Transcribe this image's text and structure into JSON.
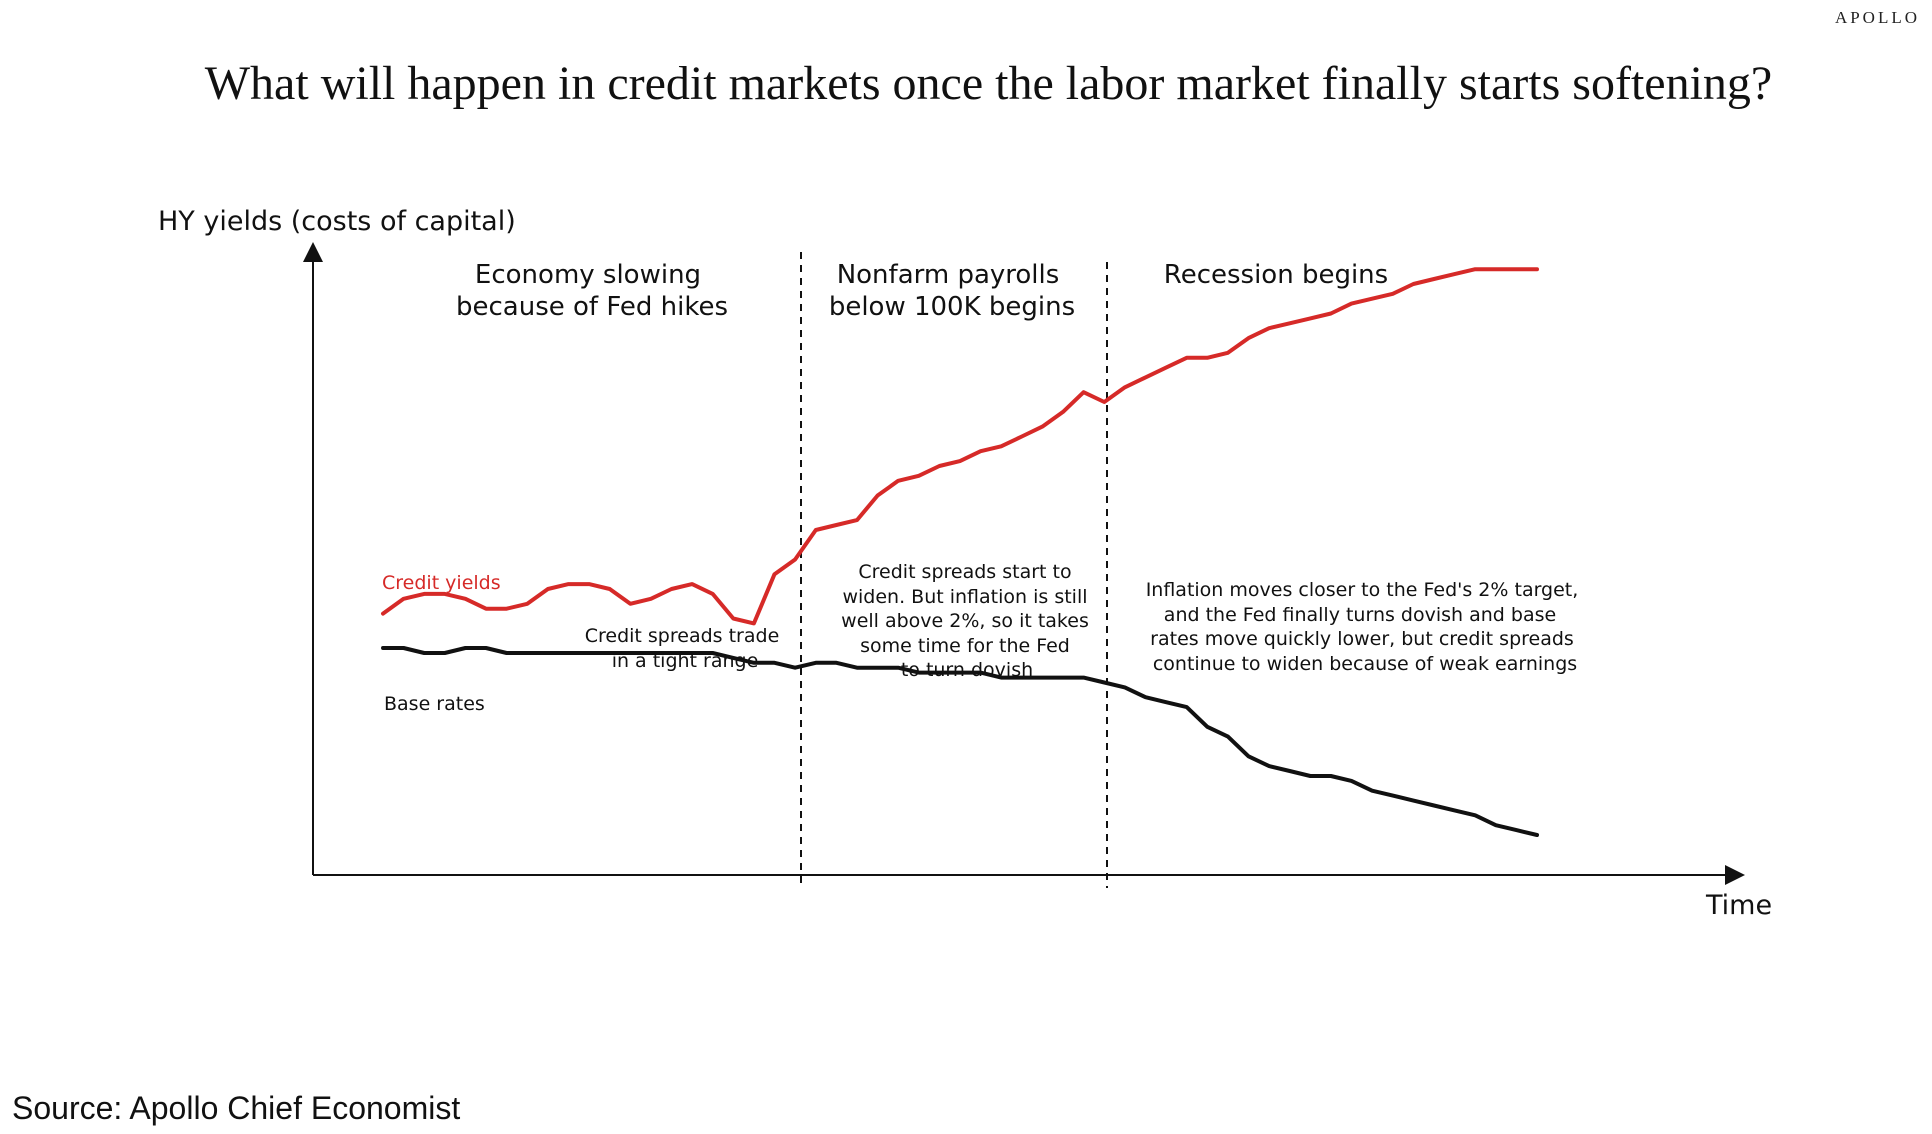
{
  "brand": "APOLLO",
  "title": "What will happen in credit markets once the labor market finally starts softening?",
  "source": "Source: Apollo Chief Economist",
  "chart_data": {
    "type": "line",
    "ylabel": "HY yields (costs of capital)",
    "xlabel": "Time",
    "phases": [
      {
        "name": "Economy slowing because of Fed hikes",
        "lines": [
          "Economy slowing",
          "because of Fed hikes"
        ]
      },
      {
        "name": "Nonfarm payrolls below 100K begins",
        "lines": [
          "Nonfarm payrolls",
          "below 100K begins"
        ]
      },
      {
        "name": "Recession begins",
        "lines": [
          "Recession begins"
        ]
      }
    ],
    "annotations": [
      {
        "lines": [
          "Credit spreads trade",
          "in a tight range"
        ]
      },
      {
        "lines": [
          "Credit spreads start to",
          "widen. But inflation is still",
          "well above 2%, so it takes",
          "some time for the Fed",
          "to turn dovish"
        ]
      },
      {
        "lines": [
          "Inflation moves closer to the Fed's 2% target,",
          "and the Fed finally turns dovish and base",
          "rates move quickly lower, but credit spreads",
          "continue to widen because of weak earnings"
        ]
      }
    ],
    "series": [
      {
        "name": "Credit yields",
        "color": "#d62a28",
        "values": [
          0.45,
          0.48,
          0.49,
          0.49,
          0.48,
          0.46,
          0.46,
          0.47,
          0.5,
          0.51,
          0.51,
          0.5,
          0.47,
          0.48,
          0.5,
          0.51,
          0.49,
          0.44,
          0.43,
          0.53,
          0.56,
          0.62,
          0.63,
          0.64,
          0.69,
          0.72,
          0.73,
          0.75,
          0.76,
          0.78,
          0.79,
          0.81,
          0.83,
          0.86,
          0.9,
          0.88,
          0.91,
          0.93,
          0.95,
          0.97,
          0.97,
          0.98,
          1.01,
          1.03,
          1.04,
          1.05,
          1.06,
          1.08,
          1.09,
          1.1,
          1.12,
          1.13,
          1.14,
          1.15,
          1.15,
          1.15,
          1.15
        ]
      },
      {
        "name": "Base rates",
        "color": "#111111",
        "values": [
          0.38,
          0.38,
          0.37,
          0.37,
          0.38,
          0.38,
          0.37,
          0.37,
          0.37,
          0.37,
          0.37,
          0.37,
          0.37,
          0.37,
          0.37,
          0.37,
          0.37,
          0.36,
          0.35,
          0.35,
          0.34,
          0.35,
          0.35,
          0.34,
          0.34,
          0.34,
          0.33,
          0.33,
          0.33,
          0.33,
          0.32,
          0.32,
          0.32,
          0.32,
          0.32,
          0.31,
          0.3,
          0.28,
          0.27,
          0.26,
          0.22,
          0.2,
          0.16,
          0.14,
          0.13,
          0.12,
          0.12,
          0.11,
          0.09,
          0.08,
          0.07,
          0.06,
          0.05,
          0.04,
          0.02,
          0.01,
          0.0
        ]
      }
    ]
  }
}
